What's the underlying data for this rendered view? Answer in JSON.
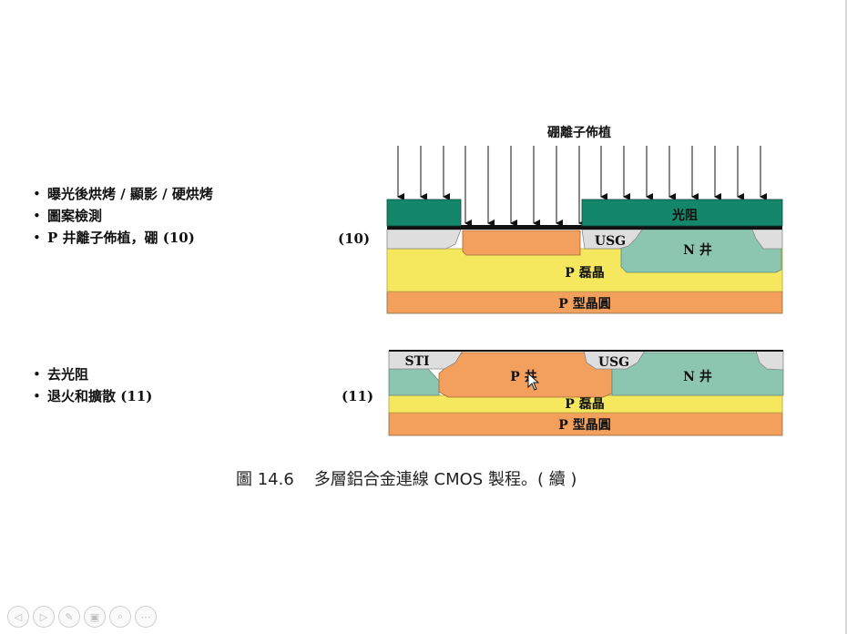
{
  "step10": {
    "number": "(10)",
    "bullets": [
      "曝光後烘烤 / 顯影 / 硬烘烤",
      "圖案檢測",
      "P 井離子佈植，硼 (10)"
    ],
    "diagram": {
      "implant_label": "硼離子佈植",
      "photoresist": "光阻",
      "usg": "USG",
      "n_well": "N 井",
      "p_epi": "P 磊晶",
      "p_wafer": "P 型晶圓"
    }
  },
  "step11": {
    "number": "(11)",
    "bullets": [
      "去光阻",
      "退火和擴散 (11)"
    ],
    "diagram": {
      "sti": "STI",
      "usg": "USG",
      "p_well": "P 井",
      "n_well": "N 井",
      "p_epi": "P 磊晶",
      "p_wafer": "P 型晶圓"
    }
  },
  "caption": {
    "figure_number": "圖 14.6",
    "title": "多層鋁合金連線 CMOS 製程。( 續 )"
  },
  "colors": {
    "photoresist": "#14866a",
    "oxide": "#dedede",
    "n_well": "#8cc5b0",
    "p_well": "#f3a05e",
    "p_epi": "#f5e85e",
    "p_wafer": "#f2a05c"
  },
  "toolbar": {
    "icons": [
      "prev-icon",
      "next-icon",
      "pen-icon",
      "slides-icon",
      "zoom-icon",
      "more-icon"
    ]
  }
}
